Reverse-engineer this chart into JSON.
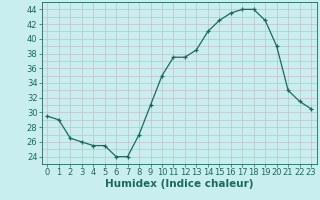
{
  "x": [
    0,
    1,
    2,
    3,
    4,
    5,
    6,
    7,
    8,
    9,
    10,
    11,
    12,
    13,
    14,
    15,
    16,
    17,
    18,
    19,
    20,
    21,
    22,
    23
  ],
  "y": [
    29.5,
    29.0,
    26.5,
    26.0,
    25.5,
    25.5,
    24.0,
    24.0,
    27.0,
    31.0,
    35.0,
    37.5,
    37.5,
    38.5,
    41.0,
    42.5,
    43.5,
    44.0,
    44.0,
    42.5,
    39.0,
    33.0,
    31.5,
    30.5
  ],
  "xlabel": "Humidex (Indice chaleur)",
  "xlim": [
    -0.5,
    23.5
  ],
  "ylim": [
    23,
    45
  ],
  "yticks": [
    24,
    26,
    28,
    30,
    32,
    34,
    36,
    38,
    40,
    42,
    44
  ],
  "xticks": [
    0,
    1,
    2,
    3,
    4,
    5,
    6,
    7,
    8,
    9,
    10,
    11,
    12,
    13,
    14,
    15,
    16,
    17,
    18,
    19,
    20,
    21,
    22,
    23
  ],
  "bg_color": "#c8eef0",
  "line_color": "#1a6b5e",
  "grid_color": "#c0b8b8",
  "marker": "+",
  "label_fontsize": 7.5,
  "tick_fontsize": 6.0
}
